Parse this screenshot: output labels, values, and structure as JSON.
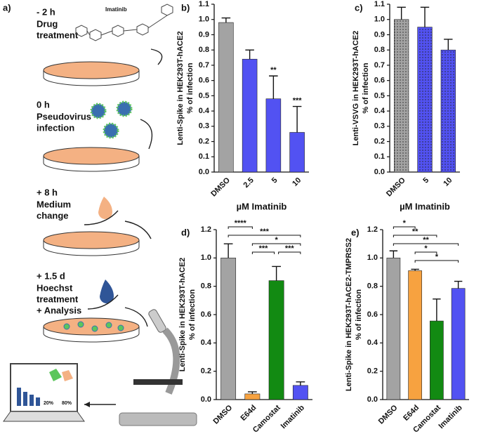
{
  "diagram": {
    "label": "a)",
    "steps": [
      {
        "time": "- 2 h",
        "lines": [
          "Drug",
          "treatment"
        ]
      },
      {
        "time": "0 h",
        "lines": [
          "Pseudovirus",
          "infection"
        ]
      },
      {
        "time": "+ 8 h",
        "lines": [
          "Medium",
          "change"
        ]
      },
      {
        "time": "+ 1.5 d",
        "lines": [
          "Hoechst",
          "treatment",
          "+ Analysis"
        ]
      }
    ],
    "compound": "Imatinib",
    "screen_labels": [
      "20%",
      "80%"
    ]
  },
  "chart_data": [
    {
      "type": "bar",
      "label": "b)",
      "ylabel": [
        "Lenti-Spike in HEK293T-hACE2",
        "% of infection"
      ],
      "xlabel": "µM Imatinib",
      "categories": [
        "DMSO",
        "2.5",
        "5",
        "10"
      ],
      "values": [
        0.98,
        0.74,
        0.48,
        0.26
      ],
      "errors": [
        0.03,
        0.06,
        0.15,
        0.17
      ],
      "colors": [
        "#a3a3a3",
        "#5252f2",
        "#5252f2",
        "#5252f2"
      ],
      "annotations": [
        {
          "index": 2,
          "label": "**"
        },
        {
          "index": 3,
          "label": "***"
        }
      ],
      "ylim": [
        0,
        1.1
      ],
      "yticks": [
        {
          "value": 0,
          "label": "0.0"
        },
        0.1,
        0.2,
        0.3,
        0.4,
        0.5,
        0.6,
        0.7,
        0.8,
        0.9,
        {
          "value": 1,
          "label": "1.0"
        },
        1.1
      ]
    },
    {
      "type": "bar",
      "label": "c)",
      "ylabel": [
        "Lenti-VSVG in HEK293T-hACE2",
        "% of infection"
      ],
      "xlabel": "µM Imatinib",
      "categories": [
        "DMSO",
        "5",
        "10"
      ],
      "values": [
        1.0,
        0.95,
        0.8
      ],
      "errors": [
        0.08,
        0.13,
        0.07
      ],
      "colors": [
        "#a3a3a3",
        "#5252f2",
        "#5252f2"
      ],
      "pattern": "dotted",
      "ylim": [
        0,
        1.1
      ],
      "yticks": [
        {
          "value": 0,
          "label": "0.0"
        },
        0.1,
        0.2,
        0.3,
        0.4,
        0.5,
        0.6,
        0.7,
        0.8,
        0.9,
        {
          "value": 1,
          "label": "1.0"
        },
        1.1
      ]
    },
    {
      "type": "bar",
      "label": "d)",
      "ylabel": [
        "Lenti-Spike in HEK293T-hACE2",
        "% of infection"
      ],
      "categories": [
        "DMSO",
        "E64d",
        "Camostat",
        "Imatinib"
      ],
      "values": [
        1.0,
        0.04,
        0.84,
        0.1
      ],
      "errors": [
        0.1,
        0.015,
        0.1,
        0.025
      ],
      "colors": [
        "#a3a3a3",
        "#f7a240",
        "#128a12",
        "#5252f2"
      ],
      "brackets": [
        {
          "from": 0,
          "to": 1,
          "label": "****"
        },
        {
          "from": 0,
          "to": 3,
          "label": "***"
        },
        {
          "from": 1,
          "to": 3,
          "label": "*"
        },
        {
          "from": 1,
          "to": 2,
          "label": "***"
        },
        {
          "from": 2,
          "to": 3,
          "label": "***"
        }
      ],
      "ylim": [
        0,
        1.2
      ],
      "yticks": [
        {
          "value": 0,
          "label": "0.0"
        },
        0.2,
        0.4,
        0.6,
        0.8,
        {
          "value": 1,
          "label": "1.0"
        },
        1.2
      ]
    },
    {
      "type": "bar",
      "label": "e)",
      "ylabel": [
        "Lenti-Spike in HEK293T-hACE2-TMPRSS2",
        "% of infection"
      ],
      "categories": [
        "DMSO",
        "E64d",
        "Camostat",
        "Imatinib"
      ],
      "values": [
        1.0,
        0.91,
        0.555,
        0.785
      ],
      "errors": [
        0.05,
        0.01,
        0.155,
        0.05
      ],
      "colors": [
        "#a3a3a3",
        "#f7a240",
        "#128a12",
        "#5252f2"
      ],
      "brackets": [
        {
          "from": 0,
          "to": 1,
          "label": "*"
        },
        {
          "from": 0,
          "to": 2,
          "label": "**"
        },
        {
          "from": 0,
          "to": 3,
          "label": "**"
        },
        {
          "from": 1,
          "to": 2,
          "label": "*"
        },
        {
          "from": 1,
          "to": 3,
          "label": "*"
        }
      ],
      "ylim": [
        0,
        1.2
      ],
      "yticks": [
        {
          "value": 0,
          "label": "0.0"
        },
        0.2,
        0.4,
        0.6,
        0.8,
        {
          "value": 1,
          "label": "1.0"
        },
        1.2
      ]
    }
  ]
}
